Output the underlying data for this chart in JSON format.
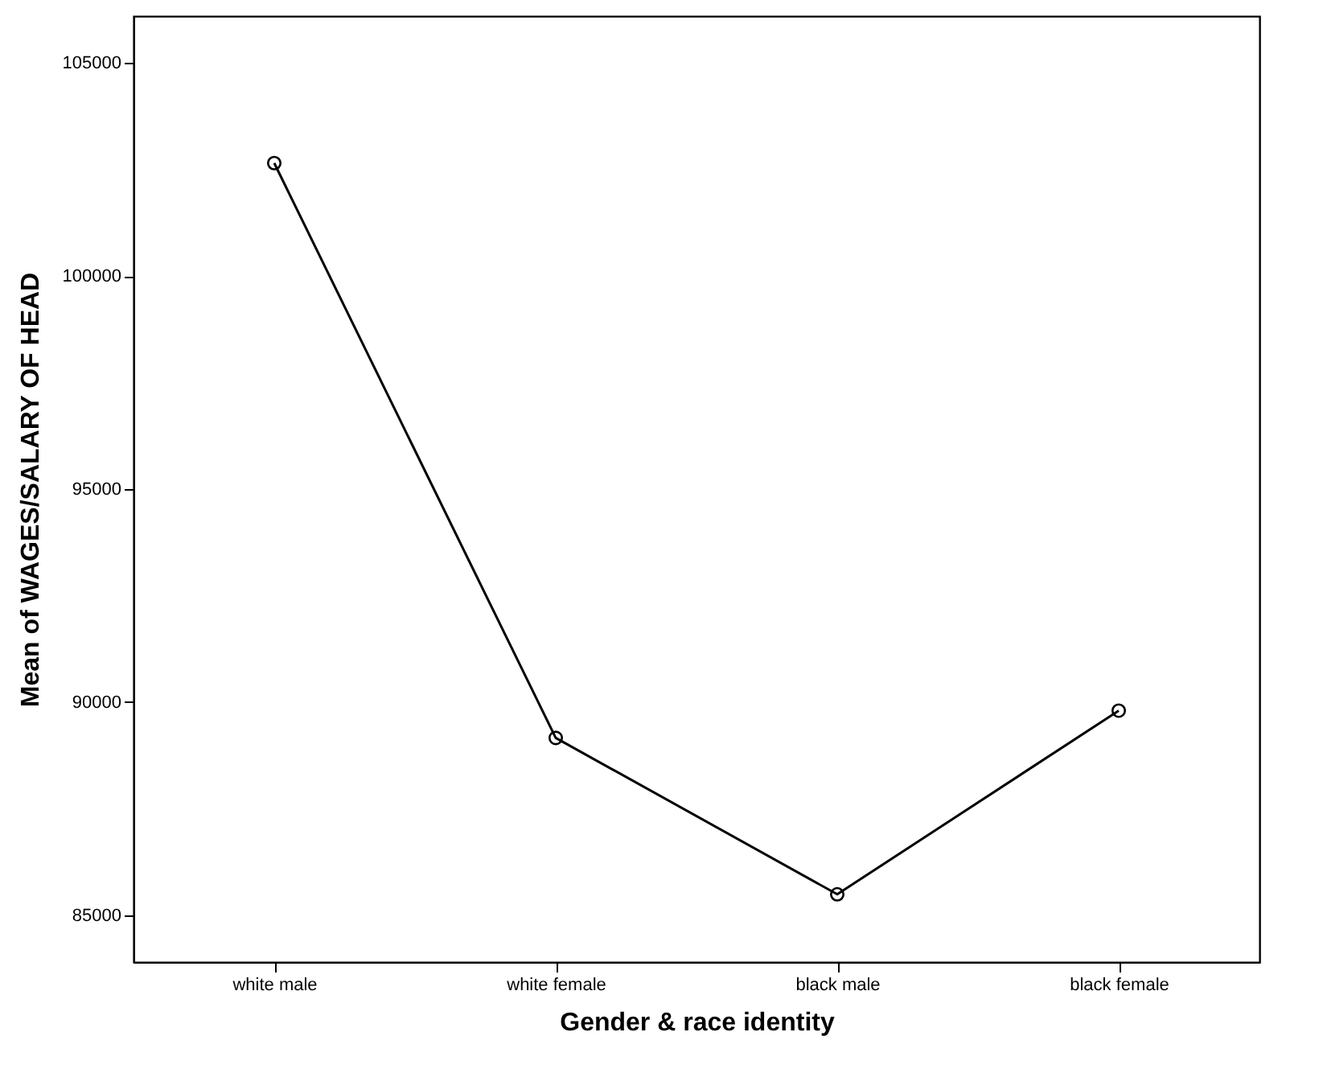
{
  "chart_data": {
    "type": "line",
    "xlabel": "Gender & race identity",
    "ylabel": "Mean of  WAGES/SALARY OF HEAD",
    "categories": [
      "white male",
      "white female",
      "black male",
      "black female"
    ],
    "series": [
      {
        "color": "#000000",
        "values": [
          102650,
          89160,
          85490,
          89800
        ]
      }
    ],
    "ylim": [
      83900,
      106100
    ],
    "yticks": [
      85000,
      90000,
      95000,
      100000,
      105000
    ],
    "grid": false,
    "legend": false,
    "marker": "circle",
    "line_style": "solid"
  }
}
